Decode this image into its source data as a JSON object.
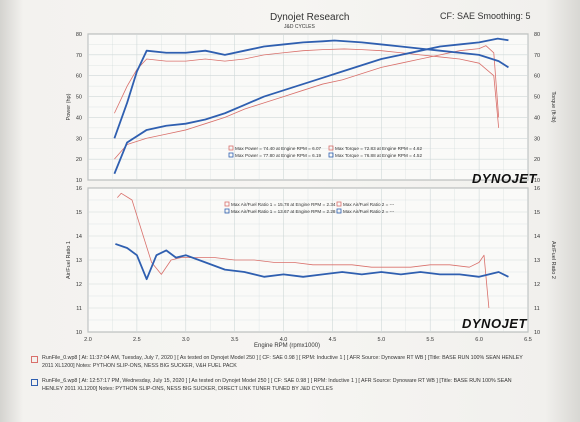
{
  "header": {
    "title": "Dynojet Research",
    "subtitle": "J&D CYCLES",
    "cf_text": "CF: SAE Smoothing: 5"
  },
  "colors": {
    "run1": "#d9706b",
    "run2": "#2f5fb0",
    "grid": "#cfd8d8"
  },
  "logo": {
    "text": "DYNOJET"
  },
  "chart_data": [
    {
      "type": "line",
      "xlim": [
        2.0,
        6.5
      ],
      "ylim_left": [
        10,
        80
      ],
      "ylim_right": [
        10,
        80
      ],
      "y_ticks_left": [
        "10",
        "20",
        "30",
        "40",
        "50",
        "60",
        "70",
        "80"
      ],
      "y_ticks_right": [
        "10",
        "20",
        "30",
        "40",
        "50",
        "60",
        "70",
        "80"
      ],
      "ylabel_left": "Power (hp)",
      "ylabel_right": "Torque (ft-lb)",
      "grid": true,
      "legend": [
        "Max Power = 74.40 at Engine RPM = 6.07",
        "Max Torque = 72.83 at Engine RPM = 4.62",
        "Max Power = 77.80 at Engine RPM = 6.19",
        "Max Torque = 76.88 at Engine RPM = 4.52"
      ],
      "series": [
        {
          "name": "Power",
          "run": "run1",
          "x": [
            2.27,
            2.4,
            2.6,
            2.8,
            3.0,
            3.2,
            3.4,
            3.6,
            3.8,
            4.0,
            4.2,
            4.4,
            4.6,
            4.8,
            5.0,
            5.2,
            5.4,
            5.6,
            5.8,
            6.0,
            6.07,
            6.15,
            6.2
          ],
          "y": [
            20,
            27,
            30,
            32,
            34,
            37,
            40,
            44,
            47,
            50,
            53,
            56,
            58,
            61,
            64,
            66,
            68,
            70,
            72,
            73,
            74.4,
            71,
            40
          ]
        },
        {
          "name": "Torque",
          "run": "run1",
          "x": [
            2.27,
            2.4,
            2.5,
            2.6,
            2.8,
            3.0,
            3.2,
            3.4,
            3.6,
            3.8,
            4.0,
            4.2,
            4.4,
            4.62,
            4.8,
            5.0,
            5.2,
            5.4,
            5.6,
            5.8,
            6.0,
            6.15,
            6.2
          ],
          "y": [
            42,
            55,
            63,
            68,
            67,
            67,
            68,
            67,
            68,
            70,
            71,
            72,
            72.5,
            72.83,
            72.5,
            72,
            71,
            70,
            69,
            68,
            66,
            60,
            35
          ]
        },
        {
          "name": "Power",
          "run": "run2",
          "x": [
            2.27,
            2.4,
            2.6,
            2.8,
            3.0,
            3.2,
            3.4,
            3.6,
            3.8,
            4.0,
            4.2,
            4.4,
            4.6,
            4.8,
            5.0,
            5.2,
            5.4,
            5.6,
            5.8,
            6.0,
            6.19,
            6.3
          ],
          "y": [
            13,
            28,
            34,
            36,
            37,
            39,
            42,
            46,
            50,
            53,
            56,
            59,
            62,
            65,
            68,
            70,
            72,
            74,
            75,
            76,
            77.8,
            77
          ]
        },
        {
          "name": "Torque",
          "run": "run2",
          "x": [
            2.27,
            2.4,
            2.5,
            2.6,
            2.8,
            3.0,
            3.2,
            3.4,
            3.6,
            3.8,
            4.0,
            4.2,
            4.4,
            4.52,
            4.8,
            5.0,
            5.2,
            5.4,
            5.6,
            5.8,
            6.0,
            6.2,
            6.3
          ],
          "y": [
            30,
            47,
            62,
            72,
            71,
            71,
            72,
            70,
            72,
            74,
            75,
            76,
            76.5,
            76.88,
            76,
            75,
            74,
            73,
            72,
            71,
            70,
            67,
            64
          ]
        }
      ]
    },
    {
      "type": "line",
      "xlim": [
        2.0,
        6.5
      ],
      "ylim": [
        10,
        16
      ],
      "y_ticks": [
        "10",
        "11",
        "12",
        "13",
        "14",
        "15",
        "16"
      ],
      "x_ticks": [
        "2.0",
        "2.5",
        "3.0",
        "3.5",
        "4.0",
        "4.5",
        "5.0",
        "5.5",
        "6.0",
        "6.5"
      ],
      "ylabel_left": "Air/Fuel Ratio 1",
      "ylabel_right": "Air/Fuel Ratio 2",
      "xlabel": "Engine RPM (rpmx1000)",
      "grid": true,
      "legend": [
        "Max Air/Fuel Ratio 1 = 15.78 at Engine RPM = 2.34",
        "Max Air/Fuel Ratio 2 = ---",
        "Max Air/Fuel Ratio 1 = 13.67 at Engine RPM = 2.28",
        "Max Air/Fuel Ratio 2 = ---"
      ],
      "series": [
        {
          "name": "Air/Fuel Ratio 1",
          "run": "run1",
          "x": [
            2.3,
            2.34,
            2.45,
            2.55,
            2.65,
            2.75,
            2.85,
            2.95,
            3.1,
            3.3,
            3.5,
            3.7,
            3.9,
            4.1,
            4.3,
            4.5,
            4.7,
            4.9,
            5.1,
            5.3,
            5.5,
            5.7,
            5.9,
            6.0,
            6.05,
            6.1
          ],
          "y": [
            15.6,
            15.78,
            15.5,
            14.2,
            12.9,
            12.4,
            13.0,
            13.1,
            13.1,
            13.1,
            13.0,
            13.0,
            12.9,
            12.9,
            12.8,
            12.8,
            12.8,
            12.7,
            12.7,
            12.7,
            12.8,
            12.8,
            12.7,
            12.9,
            13.2,
            11.0
          ]
        },
        {
          "name": "Air/Fuel Ratio 1",
          "run": "run2",
          "x": [
            2.28,
            2.4,
            2.5,
            2.6,
            2.7,
            2.8,
            2.9,
            3.0,
            3.2,
            3.4,
            3.6,
            3.8,
            4.0,
            4.2,
            4.4,
            4.6,
            4.8,
            5.0,
            5.2,
            5.4,
            5.6,
            5.8,
            6.0,
            6.1,
            6.2,
            6.3
          ],
          "y": [
            13.67,
            13.5,
            13.2,
            12.2,
            13.2,
            13.4,
            13.1,
            13.2,
            12.9,
            12.6,
            12.5,
            12.3,
            12.4,
            12.3,
            12.4,
            12.5,
            12.4,
            12.5,
            12.4,
            12.5,
            12.4,
            12.4,
            12.3,
            12.4,
            12.5,
            12.3
          ]
        }
      ]
    }
  ],
  "runs": [
    {
      "text1": "RunFile_0.wp8 [ At: 11:37:04 AM, Tuesday, July 7, 2020 ] [ As tested on Dynojet Model 250 ] [ CF: SAE 0.98 ] [ RPM: Inductive 1 ] [ AFR Source: Dynoware RT WB ] [Title: BASE RUN 100% SEAN HENLEY",
      "text2": "2011 XL1200]  Notes: PYTHON SLIP-ONS, NESS BIG SUCKER, V&H FUEL PACK"
    },
    {
      "text1": "RunFile_6.wp8 [ At: 12:57:17 PM, Wednesday, July 15, 2020 ] [ As tested on Dynojet Model 250 ] [ CF: SAE 0.98 ] [ RPM: Inductive 1 ] [ AFR Source: Dynoware RT WB ] [Title: BASE RUN 100% SEAN",
      "text2": "HENLEY 2011 XL1200]  Notes: PYTHON SLIP-ONS, NESS BIG SUCKER, DIRECT LINK TUNER TUNED BY J&D CYCLES"
    }
  ]
}
